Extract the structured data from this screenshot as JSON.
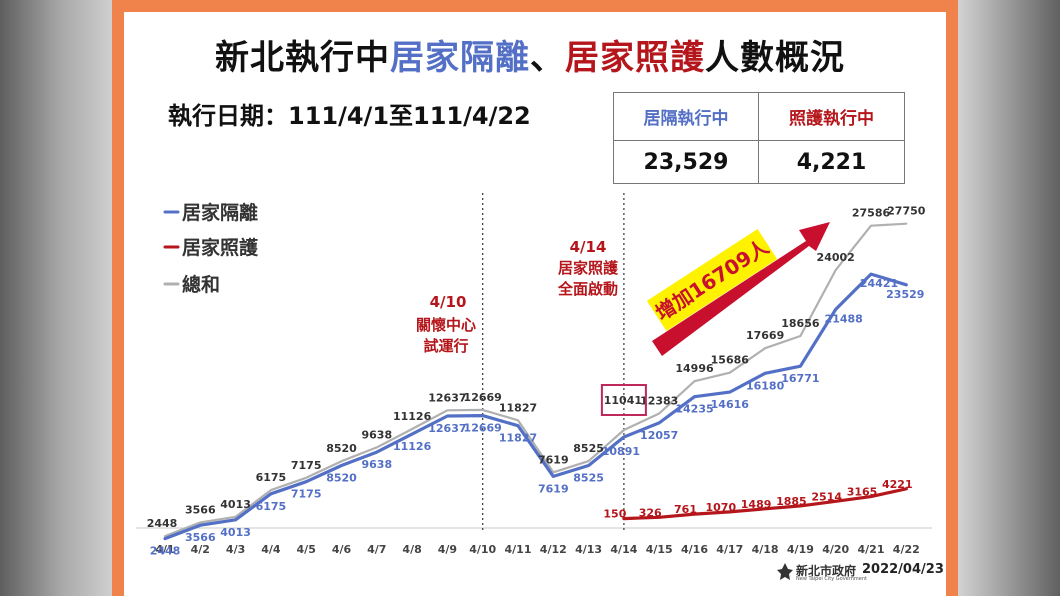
{
  "title": {
    "part1": "新北執行中",
    "part2": "居家隔離",
    "part3": "、",
    "part4": "居家照護",
    "part5": "人數概況"
  },
  "date_range": "執行日期：111/4/1至111/4/22",
  "summary": {
    "quarantine_label": "居隔執行中",
    "quarantine_value": "23,529",
    "care_label": "照護執行中",
    "care_value": "4,221"
  },
  "annotations": {
    "a1_date": "4/10",
    "a1_line1": "關懷中心",
    "a1_line2": "試運行",
    "a2_date": "4/14",
    "a2_line1": "居家照護",
    "a2_line2": "全面啟動",
    "increase": "增加16709人"
  },
  "footer": {
    "org_name": "新北市政府",
    "org_en": "New Taipei City Government",
    "date": "2022/04/23"
  },
  "colors": {
    "quarantine": "#5470c6",
    "care": "#b5161b",
    "total": "#b0b0b0",
    "highlight_box": "#c0285a",
    "arrow_bg": "#fff200"
  },
  "chart_data": {
    "type": "line",
    "categories": [
      "4/1",
      "4/2",
      "4/3",
      "4/4",
      "4/5",
      "4/6",
      "4/7",
      "4/8",
      "4/9",
      "4/10",
      "4/11",
      "4/12",
      "4/13",
      "4/14",
      "4/15",
      "4/16",
      "4/17",
      "4/18",
      "4/19",
      "4/20",
      "4/21",
      "4/22"
    ],
    "legend_position": "top-left",
    "grid": false,
    "ylim": [
      0,
      30000
    ],
    "series": [
      {
        "name": "居家隔離",
        "key": "quarantine",
        "values": [
          2448,
          3566,
          4013,
          6175,
          7175,
          8520,
          9638,
          11126,
          12637,
          12669,
          11827,
          7619,
          8525,
          10891,
          12057,
          14235,
          14616,
          16180,
          16771,
          21488,
          24421,
          23529
        ]
      },
      {
        "name": "居家照護",
        "key": "care",
        "values": [
          null,
          null,
          null,
          null,
          null,
          null,
          null,
          null,
          null,
          null,
          null,
          null,
          null,
          150,
          326,
          761,
          1070,
          1489,
          1885,
          2514,
          3165,
          4221
        ]
      },
      {
        "name": "總和",
        "key": "total",
        "values": [
          2448,
          3566,
          4013,
          6175,
          7175,
          8520,
          9638,
          11126,
          12637,
          12669,
          11827,
          7619,
          8525,
          11041,
          12383,
          14996,
          15686,
          17669,
          18656,
          24002,
          27586,
          27750
        ]
      }
    ]
  }
}
